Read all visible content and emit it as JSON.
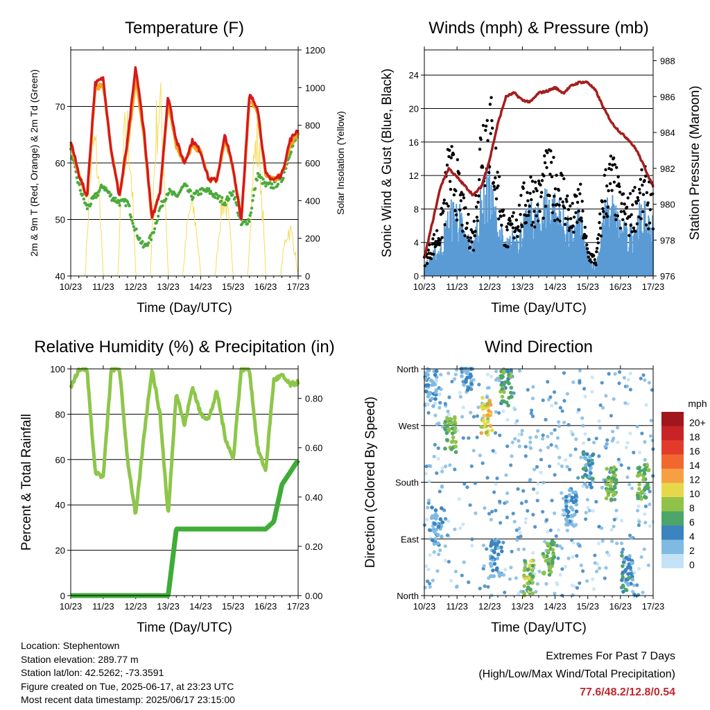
{
  "x_ticks": [
    "10/23",
    "11/23",
    "12/23",
    "13/23",
    "14/23",
    "15/23",
    "16/23",
    "17/23"
  ],
  "x_label": "Time (Day/UTC)",
  "colors": {
    "temp2m": "#d7191c",
    "temp9m": "#f4a21c",
    "dew": "#4bab3c",
    "solar": "#f5dc5a",
    "wind": "#5a9bd5",
    "gust": "#000000",
    "pressure": "#a51d1d",
    "rh": "#8ec64a",
    "precip": "#3fac38"
  },
  "chart_data": [
    {
      "type": "line",
      "title": "Temperature (F)",
      "ylabel": "2m & 9m T (Red, Orange) & 2m Td (Green)",
      "ylabel_right": "Solar Insolation (Yellow)",
      "ylim": [
        40,
        80
      ],
      "yticks": [
        40,
        50,
        60,
        70
      ],
      "ylim_right": [
        0,
        1200
      ],
      "yticks_right": [
        0,
        200,
        400,
        600,
        800,
        1000,
        1200
      ],
      "x": [
        0,
        0.25,
        0.5,
        0.75,
        1,
        1.25,
        1.5,
        1.75,
        2,
        2.25,
        2.5,
        2.75,
        3,
        3.25,
        3.5,
        3.75,
        4,
        4.25,
        4.5,
        4.75,
        5,
        5.25,
        5.5,
        5.75,
        6,
        6.25,
        6.5,
        6.75,
        7
      ],
      "series": [
        {
          "name": "2m T",
          "values": [
            64,
            58,
            54,
            74,
            75,
            62,
            54,
            64,
            77,
            66,
            50,
            55,
            72,
            64,
            60,
            64,
            62,
            57,
            57,
            65,
            59,
            50,
            72,
            70,
            58,
            57,
            58,
            64,
            66
          ]
        },
        {
          "name": "9m T",
          "values": [
            63,
            58,
            54,
            73,
            74,
            62,
            54,
            63,
            75,
            65,
            50,
            55,
            71,
            63,
            60,
            63,
            62,
            57,
            57,
            64,
            59,
            50,
            71,
            69,
            58,
            57,
            58,
            63,
            65
          ]
        },
        {
          "name": "2m Td",
          "values": [
            62,
            56,
            52,
            54,
            56,
            54,
            53,
            53,
            48,
            45,
            47,
            52,
            55,
            54,
            56,
            54,
            55,
            55,
            54,
            53,
            55,
            49,
            50,
            58,
            56,
            56,
            57,
            62,
            65
          ]
        },
        {
          "name": "Solar",
          "values": [
            0,
            0,
            0,
            850,
            0,
            0,
            0,
            950,
            0,
            0,
            0,
            1100,
            0,
            0,
            0,
            450,
            0,
            0,
            0,
            500,
            0,
            0,
            0,
            850,
            0,
            0,
            0,
            300,
            0
          ]
        }
      ]
    },
    {
      "type": "line",
      "title": "Winds (mph) & Pressure (mb)",
      "ylabel": "Sonic Wind & Gust (Blue, Black)",
      "ylabel_right": "Station Pressure (Maroon)",
      "ylim": [
        0,
        27
      ],
      "yticks": [
        0,
        4,
        8,
        12,
        16,
        20,
        24
      ],
      "ylim_right": [
        976,
        988.6
      ],
      "yticks_right": [
        976,
        978,
        980,
        982,
        984,
        986,
        988
      ],
      "x": [
        0,
        0.25,
        0.5,
        0.75,
        1,
        1.25,
        1.5,
        1.75,
        2,
        2.25,
        2.5,
        2.75,
        3,
        3.25,
        3.5,
        3.75,
        4,
        4.25,
        4.5,
        4.75,
        5,
        5.25,
        5.5,
        5.75,
        6,
        6.25,
        6.5,
        6.75,
        7
      ],
      "series": [
        {
          "name": "Wind",
          "values": [
            1,
            2,
            3,
            6,
            7,
            4,
            3,
            8,
            9,
            5,
            3,
            4,
            5,
            6,
            6,
            8,
            7,
            6,
            4,
            6,
            2,
            1,
            6,
            7,
            5,
            4,
            6,
            6,
            5
          ]
        },
        {
          "name": "Gust",
          "values": [
            2,
            4,
            6,
            14,
            12,
            7,
            5,
            18,
            20,
            12,
            5,
            7,
            9,
            11,
            10,
            13,
            12,
            11,
            7,
            10,
            3,
            2,
            11,
            13,
            9,
            8,
            10,
            11,
            9
          ]
        },
        {
          "name": "Pressure",
          "values": [
            977,
            979,
            981,
            982,
            981.5,
            981,
            980.5,
            981,
            982.5,
            984.5,
            986,
            986.2,
            985.8,
            985.7,
            986.2,
            986.3,
            986.5,
            986.2,
            986.6,
            986.8,
            986.8,
            986.3,
            985.3,
            984.5,
            984,
            983.6,
            983,
            982,
            981
          ]
        }
      ]
    },
    {
      "type": "line",
      "title": "Relative Humidity (%) & Precipitation (in)",
      "ylabel": "Percent & Total Rainfall",
      "ylim": [
        0,
        100
      ],
      "yticks": [
        0,
        20,
        40,
        60,
        80,
        100
      ],
      "ylim_right": [
        0,
        0.92
      ],
      "yticks_right": [
        "0.00",
        "0.20",
        "0.40",
        "0.60",
        "0.80"
      ],
      "x": [
        0,
        0.25,
        0.5,
        0.75,
        1,
        1.25,
        1.5,
        1.75,
        2,
        2.25,
        2.5,
        2.75,
        3,
        3.25,
        3.5,
        3.75,
        4,
        4.25,
        4.5,
        4.75,
        5,
        5.25,
        5.5,
        5.75,
        6,
        6.25,
        6.5,
        6.75,
        7
      ],
      "series": [
        {
          "name": "RH",
          "values": [
            92,
            100,
            100,
            55,
            52,
            100,
            100,
            60,
            35,
            70,
            100,
            80,
            35,
            90,
            75,
            92,
            80,
            78,
            90,
            70,
            60,
            100,
            100,
            65,
            55,
            95,
            97,
            93,
            94
          ]
        },
        {
          "name": "Precip",
          "values": [
            0,
            0,
            0,
            0,
            0,
            0,
            0,
            0,
            0,
            0,
            0,
            0,
            0,
            0.27,
            0.27,
            0.27,
            0.27,
            0.27,
            0.27,
            0.27,
            0.27,
            0.27,
            0.27,
            0.27,
            0.27,
            0.3,
            0.45,
            0.5,
            0.55
          ]
        }
      ]
    },
    {
      "type": "scatter",
      "title": "Wind Direction",
      "ylabel": "Direction (Colored By Speed)",
      "ylim": [
        0,
        360
      ],
      "yticks": [
        {
          "v": 0,
          "label": "North"
        },
        {
          "v": 90,
          "label": "East"
        },
        {
          "v": 180,
          "label": "South"
        },
        {
          "v": 270,
          "label": "West"
        },
        {
          "v": 360,
          "label": "North"
        }
      ],
      "colorbar_title": "mph",
      "colorbar_labels": [
        "20+",
        "18",
        "16",
        "14",
        "12",
        "10",
        "8",
        "6",
        "4",
        "2",
        "0"
      ],
      "colorbar_colors": [
        "#a0161c",
        "#c82427",
        "#e23b2c",
        "#f0682f",
        "#f6a043",
        "#e6d84a",
        "#90c24a",
        "#4da56a",
        "#3b84c0",
        "#7fbae3",
        "#c3e2f5"
      ],
      "clusters": [
        {
          "x": 0.2,
          "dir": 330,
          "speed": 2
        },
        {
          "x": 0.4,
          "dir": 110,
          "speed": 3
        },
        {
          "x": 0.8,
          "dir": 255,
          "speed": 7
        },
        {
          "x": 1.3,
          "dir": 355,
          "speed": 3
        },
        {
          "x": 1.9,
          "dir": 285,
          "speed": 10
        },
        {
          "x": 2.5,
          "dir": 330,
          "speed": 6
        },
        {
          "x": 2.2,
          "dir": 60,
          "speed": 3
        },
        {
          "x": 3.2,
          "dir": 30,
          "speed": 8
        },
        {
          "x": 3.8,
          "dir": 60,
          "speed": 7
        },
        {
          "x": 4.5,
          "dir": 140,
          "speed": 3
        },
        {
          "x": 5.0,
          "dir": 200,
          "speed": 4
        },
        {
          "x": 5.7,
          "dir": 175,
          "speed": 7
        },
        {
          "x": 6.2,
          "dir": 35,
          "speed": 4
        },
        {
          "x": 6.7,
          "dir": 180,
          "speed": 7
        }
      ]
    }
  ],
  "info": {
    "location": "Location: Stephentown",
    "elevation": "Station elevation: 289.77 m",
    "latlon": "Station lat/lon: 42.5262; -73.3591",
    "created": "Figure created on Tue, 2025-06-17, at 23:23 UTC",
    "recent": "Most recent data timestamp: 2025/06/17 23:15:00"
  },
  "extremes": {
    "title": "Extremes For Past 7 Days",
    "subtitle": "(High/Low/Max Wind/Total Precipitation)",
    "values": "77.6/48.2/12.8/0.54"
  }
}
